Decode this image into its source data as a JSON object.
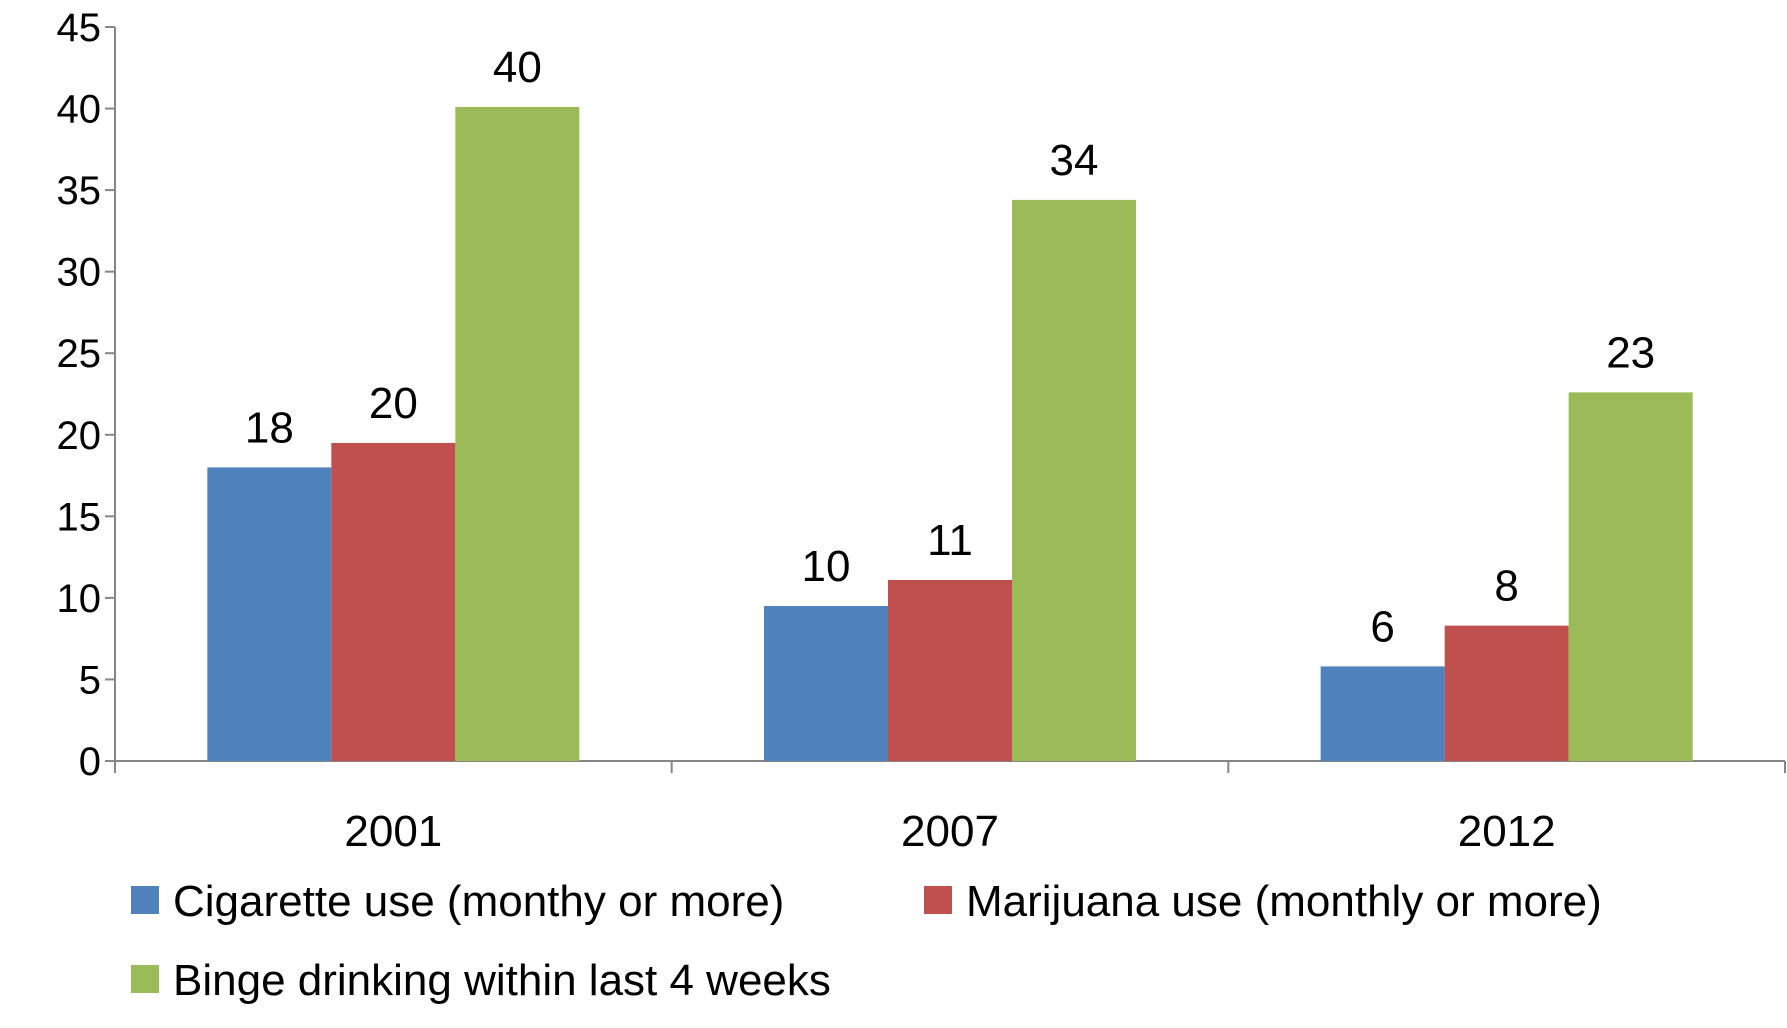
{
  "chart_data": {
    "type": "bar",
    "title": "",
    "xlabel": "",
    "ylabel": "",
    "ylim": [
      0,
      45
    ],
    "y_ticks": [
      "0",
      "5",
      "10",
      "15",
      "20",
      "25",
      "30",
      "35",
      "40",
      "45"
    ],
    "grid": false,
    "legend_position": "bottom",
    "categories": [
      "2001",
      "2007",
      "2012"
    ],
    "series": [
      {
        "name": "Cigarette use (monthy or more)",
        "color": "#4F81BD",
        "values": [
          18,
          9.5,
          5.8
        ],
        "labels": [
          "18",
          "10",
          "6"
        ]
      },
      {
        "name": "Marijuana use (monthly or more)",
        "color": "#C0504D",
        "values": [
          19.5,
          11.1,
          8.3
        ],
        "labels": [
          "20",
          "11",
          "8"
        ]
      },
      {
        "name": "Binge drinking within last 4 weeks",
        "color": "#9BBB59",
        "values": [
          40.1,
          34.4,
          22.6
        ],
        "labels": [
          "40",
          "34",
          "23"
        ]
      }
    ]
  }
}
